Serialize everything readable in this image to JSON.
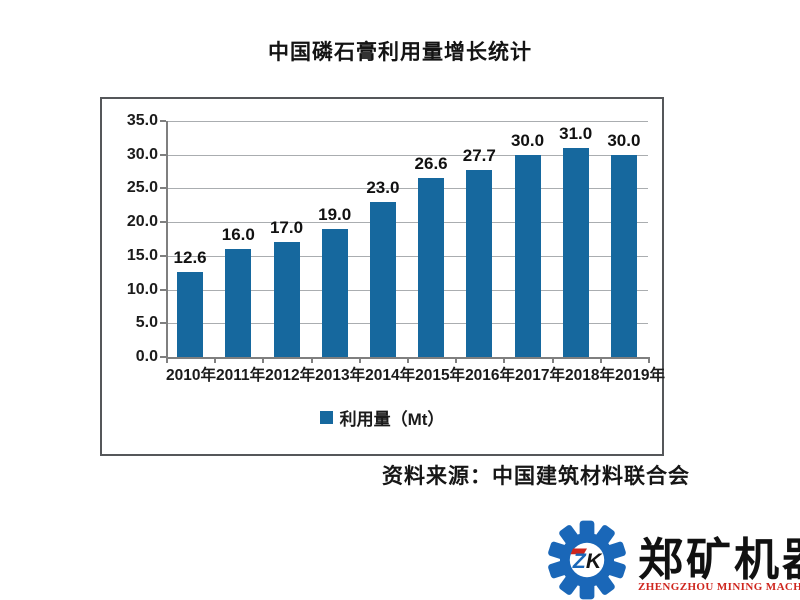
{
  "page": {
    "title": "中国磷石膏利用量增长统计",
    "source": "资料来源：中国建筑材料联合会"
  },
  "chart_data": {
    "type": "bar",
    "title": "中国磷石膏利用量增长统计",
    "categories": [
      "2010年",
      "2011年",
      "2012年",
      "2013年",
      "2014年",
      "2015年",
      "2016年",
      "2017年",
      "2018年",
      "2019年"
    ],
    "values": [
      12.6,
      16.0,
      17.0,
      19.0,
      23.0,
      26.6,
      27.7,
      30.0,
      31.0,
      30.0
    ],
    "legend": "利用量（Mt）",
    "xlabel": "",
    "ylabel": "",
    "ylim": [
      0,
      35
    ],
    "yticks": [
      "35.0",
      "30.0",
      "25.0",
      "20.0",
      "15.0",
      "10.0",
      "5.0",
      "0.0"
    ],
    "grid": true,
    "legend_position": "bottom",
    "bar_color": "#16689e",
    "source": "资料来源：中国建筑材料联合会"
  },
  "branding": {
    "monogram_z": "Z",
    "monogram_k": "K",
    "company_cn": "郑矿机器",
    "company_en": "ZHENGZHOU MINING MACHINERY",
    "gear_blue": "#1a67b8",
    "accent_red": "#cf261e"
  }
}
